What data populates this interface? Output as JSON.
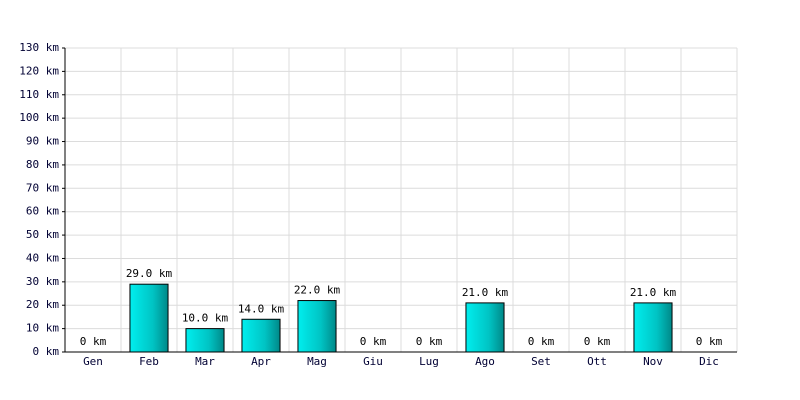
{
  "chart_data": {
    "type": "bar",
    "categories": [
      "Gen",
      "Feb",
      "Mar",
      "Apr",
      "Mag",
      "Giu",
      "Lug",
      "Ago",
      "Set",
      "Ott",
      "Nov",
      "Dic"
    ],
    "values": [
      0,
      29,
      10,
      14,
      22,
      0,
      0,
      21,
      0,
      0,
      21,
      0
    ],
    "value_labels": [
      "0 km",
      "29.0 km",
      "10.0 km",
      "14.0 km",
      "22.0 km",
      "0 km",
      "0 km",
      "21.0 km",
      "0 km",
      "0 km",
      "21.0 km",
      "0 km"
    ],
    "color": "#00cccc",
    "ylim": [
      0,
      130
    ],
    "yticks": [
      {
        "value": 0,
        "label": "0 km"
      },
      {
        "value": 10,
        "label": "10 km"
      },
      {
        "value": 20,
        "label": "20 km"
      },
      {
        "value": 30,
        "label": "30 km"
      },
      {
        "value": 40,
        "label": "40 km"
      },
      {
        "value": 50,
        "label": "50 km"
      },
      {
        "value": 60,
        "label": "60 km"
      },
      {
        "value": 70,
        "label": "70 km"
      },
      {
        "value": 80,
        "label": "80 km"
      },
      {
        "value": 90,
        "label": "90 km"
      },
      {
        "value": 100,
        "label": "100 km"
      },
      {
        "value": 110,
        "label": "110 km"
      },
      {
        "value": 120,
        "label": "120 km"
      },
      {
        "value": 130,
        "label": "130 km"
      }
    ],
    "grid": true
  }
}
